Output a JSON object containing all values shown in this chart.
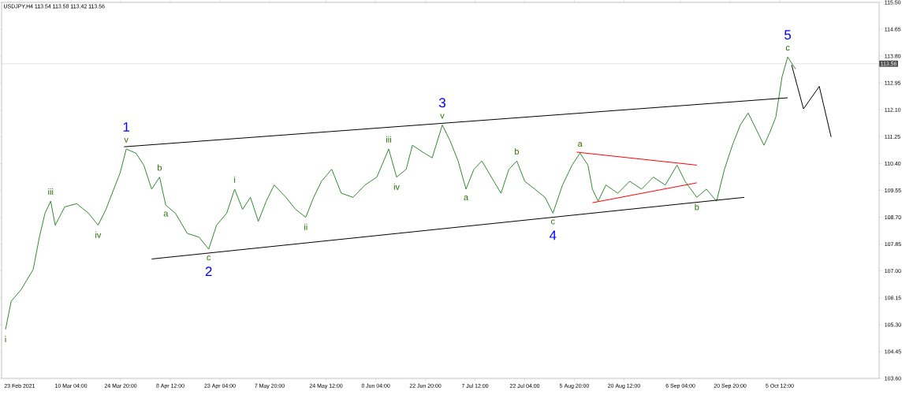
{
  "chart_data": {
    "type": "line",
    "title": "USDJPY,H4  113.54 113.58 113.42 113.56",
    "xlim": [
      "2021-02-17T16:00",
      "2021-11-03T20:00"
    ],
    "ylim": [
      103.6,
      115.5
    ],
    "xticks": [
      {
        "value": "2021-02-23T00:00",
        "label": "23 Feb 2021"
      },
      {
        "value": "2021-03-10T04:00",
        "label": "10 Mar 04:00"
      },
      {
        "value": "2021-03-24T20:00",
        "label": "24 Mar 20:00"
      },
      {
        "value": "2021-04-08T12:00",
        "label": "8 Apr 12:00"
      },
      {
        "value": "2021-04-23T04:00",
        "label": "23 Apr 04:00"
      },
      {
        "value": "2021-05-07T20:00",
        "label": "7 May 20:00"
      },
      {
        "value": "2021-05-24T12:00",
        "label": "24 May 12:00"
      },
      {
        "value": "2021-06-08T04:00",
        "label": "8 Jun 04:00"
      },
      {
        "value": "2021-06-22T20:00",
        "label": "22 Jun 20:00"
      },
      {
        "value": "2021-07-07T12:00",
        "label": "7 Jul 12:00"
      },
      {
        "value": "2021-07-22T04:00",
        "label": "22 Jul 04:00"
      },
      {
        "value": "2021-08-05T20:00",
        "label": "5 Aug 20:00"
      },
      {
        "value": "2021-08-20T12:00",
        "label": "20 Aug 12:00"
      },
      {
        "value": "2021-09-06T04:00",
        "label": "6 Sep 04:00"
      },
      {
        "value": "2021-09-20T20:00",
        "label": "20 Sep 20:00"
      },
      {
        "value": "2021-10-05T12:00",
        "label": "5 Oct 12:00"
      }
    ],
    "yticks": [
      {
        "value": 103.6,
        "label": "103.60"
      },
      {
        "value": 104.45,
        "label": "104.45"
      },
      {
        "value": 105.3,
        "label": "105.30"
      },
      {
        "value": 106.15,
        "label": "106.15"
      },
      {
        "value": 107,
        "label": "107.00"
      },
      {
        "value": 107.85,
        "label": "107.85"
      },
      {
        "value": 108.7,
        "label": "108.70"
      },
      {
        "value": 109.55,
        "label": "109.55"
      },
      {
        "value": 110.4,
        "label": "110.40"
      },
      {
        "value": 111.25,
        "label": "111.25"
      },
      {
        "value": 112.1,
        "label": "112.10"
      },
      {
        "value": 112.95,
        "label": "112.95"
      },
      {
        "value": 113.8,
        "label": "113.80"
      },
      {
        "value": 114.65,
        "label": "114.65"
      },
      {
        "value": 115.5,
        "label": "115.50"
      }
    ],
    "marker": "none",
    "grid": false,
    "ref_lines": [
      {
        "axis": "y",
        "value": 113.56,
        "label": "113.56",
        "color": "#c0c0c0"
      }
    ],
    "series": [
      {
        "color": "#2e8b2e",
        "x": [
          "2021-02-18T20:00",
          "2021-02-20T12:00",
          "2021-02-23T12:00",
          "2021-02-27T00:00",
          "2021-02-28T20:00",
          "2021-03-02T12:00",
          "2021-03-04T04:00",
          "2021-03-05T12:00",
          "2021-03-08T08:00",
          "2021-03-11T20:00",
          "2021-03-15T08:00",
          "2021-03-18T04:00",
          "2021-03-20T12:00",
          "2021-03-22T08:00",
          "2021-03-24T16:00",
          "2021-03-26T12:00",
          "2021-03-29T08:00",
          "2021-03-31T16:00",
          "2021-04-03T00:00",
          "2021-04-05T08:00",
          "2021-04-07T04:00",
          "2021-04-10T00:00",
          "2021-04-13T12:00",
          "2021-04-17T00:00",
          "2021-04-19T20:00",
          "2021-04-22T04:00",
          "2021-04-25T04:00",
          "2021-04-27T12:00",
          "2021-04-29T20:00",
          "2021-05-02T04:00",
          "2021-05-04T12:00",
          "2021-05-06T20:00",
          "2021-05-09T04:00",
          "2021-05-12T16:00",
          "2021-05-15T12:00",
          "2021-05-18T12:00",
          "2021-05-20T20:00",
          "2021-05-23T04:00",
          "2021-05-26T04:00",
          "2021-05-29T00:00",
          "2021-06-01T12:00",
          "2021-06-05T00:00",
          "2021-06-08T12:00",
          "2021-06-12T00:00",
          "2021-06-14T08:00",
          "2021-06-17T04:00",
          "2021-06-19T00:00",
          "2021-06-22T12:00",
          "2021-06-24T20:00",
          "2021-06-27T20:00",
          "2021-06-30T04:00",
          "2021-07-02T12:00",
          "2021-07-04T20:00",
          "2021-07-07T04:00",
          "2021-07-09T12:00",
          "2021-07-12T08:00",
          "2021-07-15T04:00",
          "2021-07-17T12:00",
          "2021-07-19T20:00",
          "2021-07-22T04:00",
          "2021-07-25T04:00",
          "2021-07-28T04:00",
          "2021-07-30T12:00",
          "2021-08-02T08:00",
          "2021-08-05T04:00",
          "2021-08-07T12:00",
          "2021-08-09T20:00",
          "2021-08-11T04:00",
          "2021-08-12T20:00",
          "2021-08-15T04:00",
          "2021-08-18T16:00",
          "2021-08-22T04:00",
          "2021-08-25T16:00",
          "2021-08-29T04:00",
          "2021-09-01T16:00",
          "2021-09-05T04:00",
          "2021-09-07T12:00",
          "2021-09-11T00:00",
          "2021-09-13T20:00",
          "2021-09-16T20:00",
          "2021-09-19T04:00",
          "2021-09-21T12:00",
          "2021-09-23T20:00",
          "2021-09-26T04:00",
          "2021-09-28T12:00",
          "2021-09-30T20:00",
          "2021-10-02T12:00",
          "2021-10-04T08:00",
          "2021-10-06T04:00",
          "2021-10-07T20:00",
          "2021-10-10T04:00"
        ],
        "values": [
          105.15,
          106.04,
          106.42,
          107.05,
          108.07,
          108.83,
          109.21,
          108.45,
          109.03,
          109.13,
          108.83,
          108.45,
          108.95,
          109.46,
          110.1,
          110.86,
          110.73,
          110.35,
          109.59,
          109.97,
          109.08,
          108.83,
          108.19,
          108.07,
          107.69,
          108.45,
          108.83,
          109.59,
          108.95,
          109.33,
          108.57,
          109.21,
          109.72,
          109.33,
          108.95,
          108.7,
          109.33,
          109.84,
          110.22,
          109.46,
          109.33,
          109.72,
          109.97,
          110.86,
          109.97,
          110.22,
          110.98,
          110.73,
          110.58,
          111.62,
          111.11,
          110.48,
          109.59,
          110.22,
          110.48,
          109.97,
          109.46,
          110.22,
          110.48,
          109.84,
          109.59,
          109.33,
          108.83,
          109.72,
          110.35,
          110.73,
          110.35,
          109.59,
          109.21,
          109.72,
          109.46,
          109.84,
          109.59,
          109.97,
          109.72,
          110.35,
          109.84,
          109.33,
          109.59,
          109.21,
          110.22,
          110.98,
          111.62,
          112.0,
          111.49,
          110.98,
          111.37,
          111.87,
          113.14,
          113.77,
          113.39
        ]
      },
      {
        "color": "#000000",
        "x": [
          "2021-03-25T20:00",
          "2021-10-07T20:00"
        ],
        "values": [
          110.93,
          112.48
        ]
      },
      {
        "color": "#000000",
        "x": [
          "2021-04-03T00:00",
          "2021-09-25T00:00"
        ],
        "values": [
          107.38,
          109.33
        ]
      },
      {
        "color": "#ff0000",
        "x": [
          "2021-08-06T12:00",
          "2021-09-11T00:00"
        ],
        "values": [
          110.76,
          110.35
        ]
      },
      {
        "color": "#ff0000",
        "x": [
          "2021-08-11T04:00",
          "2021-09-11T00:00"
        ],
        "values": [
          109.16,
          109.79
        ]
      },
      {
        "color": "#000000",
        "x": [
          "2021-10-09T00:00",
          "2021-10-12T12:00",
          "2021-10-17T04:00",
          "2021-10-20T16:00"
        ],
        "values": [
          113.52,
          112.13,
          112.84,
          111.24
        ]
      }
    ],
    "annotations": [
      {
        "text": "1",
        "x": "2021-03-26T12:00",
        "y": 110.86
      },
      {
        "text": "2",
        "x": "2021-04-19T20:00",
        "y": 107.69
      },
      {
        "text": "3",
        "x": "2021-06-27T20:00",
        "y": 111.62
      },
      {
        "text": "4",
        "x": "2021-07-30T12:00",
        "y": 108.83
      },
      {
        "text": "5",
        "x": "2021-10-07T20:00",
        "y": 113.77
      },
      {
        "text": "i",
        "x": "2021-02-18T20:00",
        "y": 105.15
      },
      {
        "text": "iii",
        "x": "2021-03-04T04:00",
        "y": 109.21
      },
      {
        "text": "iv",
        "x": "2021-03-18T04:00",
        "y": 108.45
      },
      {
        "text": "v",
        "x": "2021-03-26T12:00",
        "y": 110.86
      },
      {
        "text": "a",
        "x": "2021-04-07T04:00",
        "y": 109.08
      },
      {
        "text": "b",
        "x": "2021-04-05T08:00",
        "y": 109.97
      },
      {
        "text": "c",
        "x": "2021-04-19T20:00",
        "y": 107.69
      },
      {
        "text": "i",
        "x": "2021-04-27T12:00",
        "y": 109.59
      },
      {
        "text": "ii",
        "x": "2021-05-18T12:00",
        "y": 108.7
      },
      {
        "text": "iii",
        "x": "2021-06-12T00:00",
        "y": 110.86
      },
      {
        "text": "iv",
        "x": "2021-06-14T08:00",
        "y": 109.97
      },
      {
        "text": "v",
        "x": "2021-06-27T20:00",
        "y": 111.62
      },
      {
        "text": "a",
        "x": "2021-07-04T20:00",
        "y": 109.59
      },
      {
        "text": "b",
        "x": "2021-07-19T20:00",
        "y": 110.48
      },
      {
        "text": "c",
        "x": "2021-07-30T12:00",
        "y": 108.83
      },
      {
        "text": "a",
        "x": "2021-08-07T12:00",
        "y": 110.73
      },
      {
        "text": "b",
        "x": "2021-09-11T00:00",
        "y": 109.33
      },
      {
        "text": "c",
        "x": "2021-10-07T20:00",
        "y": 113.77
      }
    ]
  }
}
